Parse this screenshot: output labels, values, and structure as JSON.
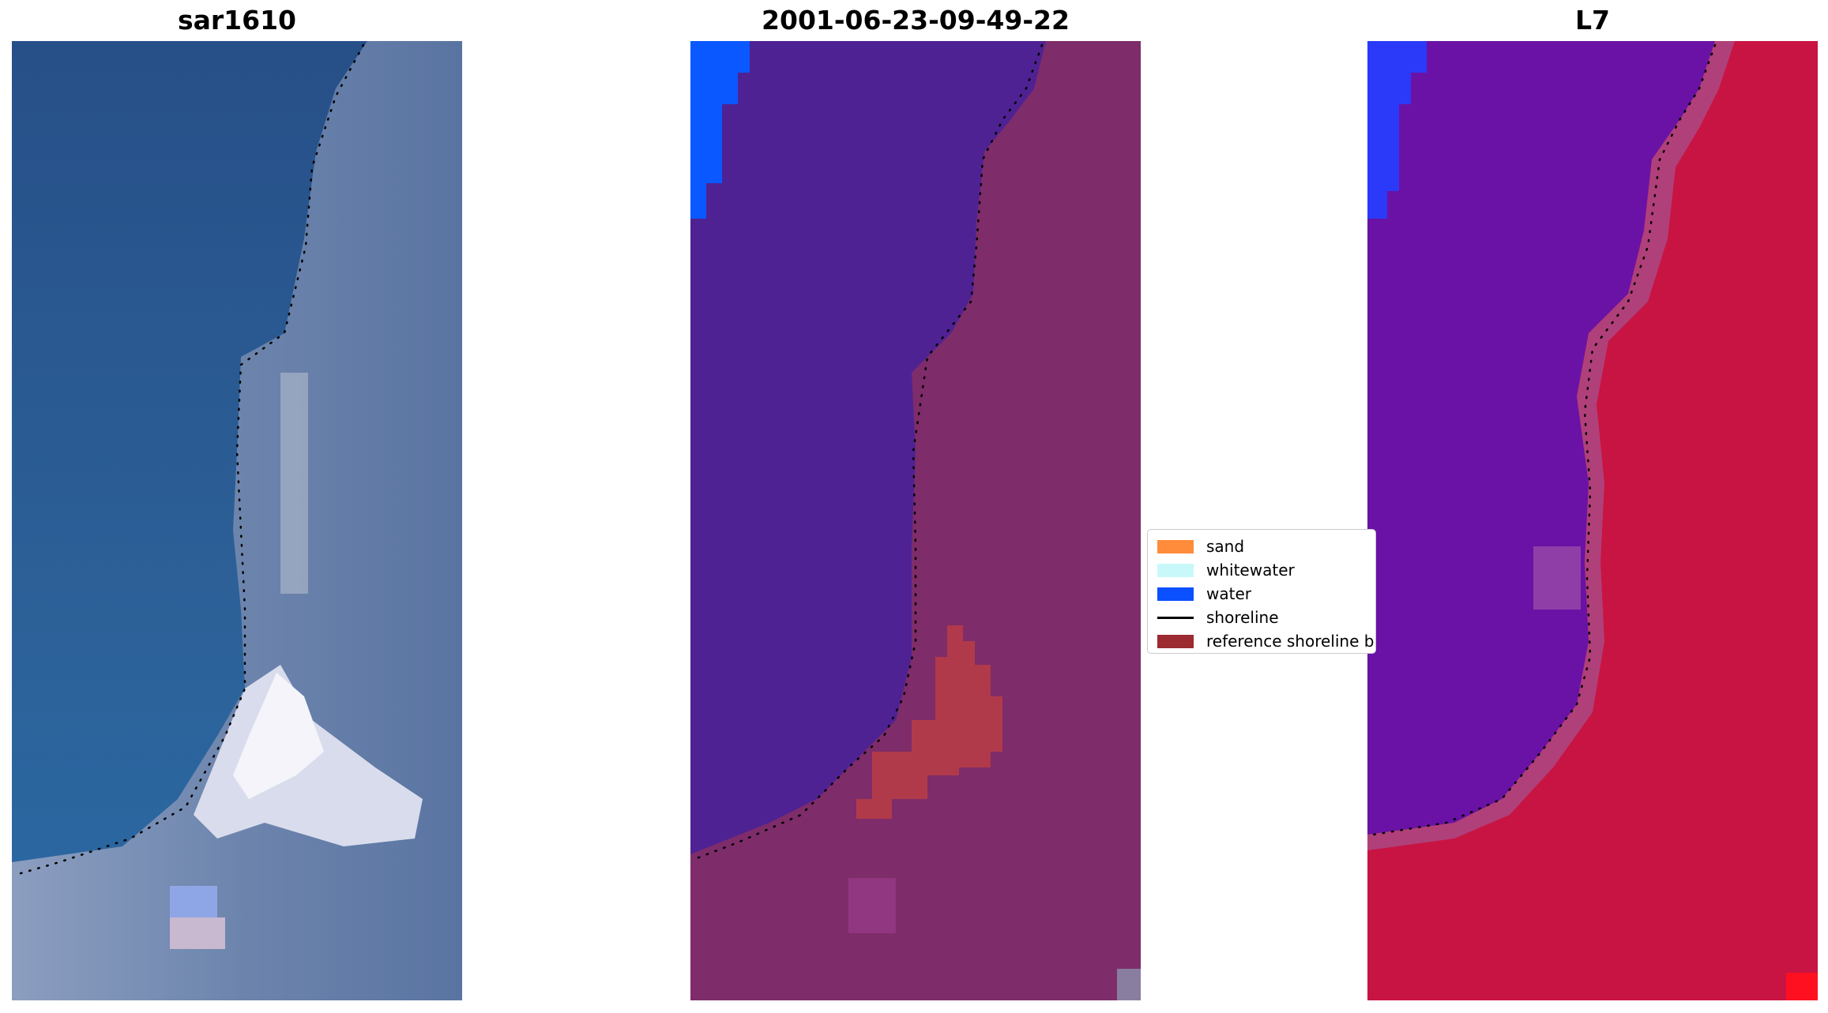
{
  "panels": [
    {
      "title": "sar1610"
    },
    {
      "title": "2001-06-23-09-49-22"
    },
    {
      "title": "L7"
    }
  ],
  "legend": {
    "items": [
      {
        "label": "sand",
        "color": "#ff8c3a",
        "kind": "patch"
      },
      {
        "label": "whitewater",
        "color": "#c8f8fa",
        "kind": "patch"
      },
      {
        "label": "water",
        "color": "#0a50ff",
        "kind": "patch"
      },
      {
        "label": "shoreline",
        "color": "#000000",
        "kind": "line"
      },
      {
        "label": "reference shoreline buffer",
        "color": "#9b2a31",
        "kind": "patch"
      }
    ]
  },
  "colors": {
    "rgb_water": "#2a5a96",
    "rgb_land": "#6d87b0",
    "rgb_white": "#f2f2f8",
    "class_water": "#4f2294",
    "class_land": "#7e2c6a",
    "class_buffer": "#b13a4a",
    "class_blue": "#0a58ff",
    "fc_water": "#6a12a6",
    "fc_land": "#c81442",
    "fc_blue": "#2a3af8",
    "fc_red": "#ff1020"
  }
}
